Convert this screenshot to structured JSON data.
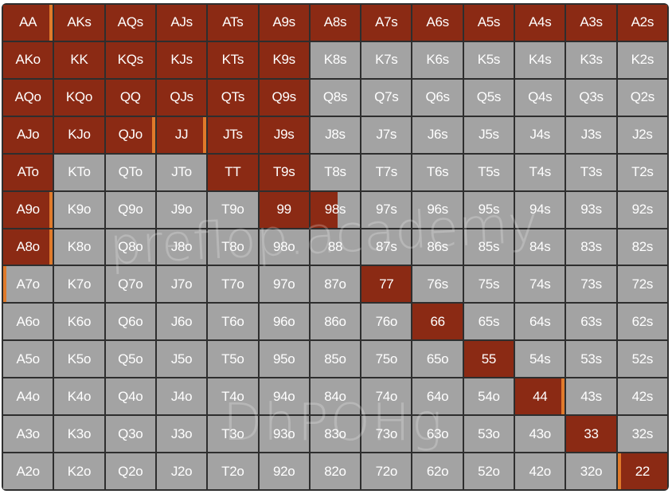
{
  "colors": {
    "raise": "#8b2a14",
    "fold": "#a3a3a3",
    "marker": "#e07a2a",
    "grid_border": "#2e2e2e"
  },
  "watermark": {
    "brand": "preflop.academy",
    "code": "DhPOHg"
  },
  "grid": {
    "rows": [
      [
        {
          "h": "AA",
          "a": "raise",
          "m": "right"
        },
        {
          "h": "AKs",
          "a": "raise"
        },
        {
          "h": "AQs",
          "a": "raise"
        },
        {
          "h": "AJs",
          "a": "raise"
        },
        {
          "h": "ATs",
          "a": "raise"
        },
        {
          "h": "A9s",
          "a": "raise"
        },
        {
          "h": "A8s",
          "a": "raise"
        },
        {
          "h": "A7s",
          "a": "raise"
        },
        {
          "h": "A6s",
          "a": "raise"
        },
        {
          "h": "A5s",
          "a": "raise"
        },
        {
          "h": "A4s",
          "a": "raise"
        },
        {
          "h": "A3s",
          "a": "raise"
        },
        {
          "h": "A2s",
          "a": "raise"
        }
      ],
      [
        {
          "h": "AKo",
          "a": "raise"
        },
        {
          "h": "KK",
          "a": "raise"
        },
        {
          "h": "KQs",
          "a": "raise"
        },
        {
          "h": "KJs",
          "a": "raise"
        },
        {
          "h": "KTs",
          "a": "raise"
        },
        {
          "h": "K9s",
          "a": "raise"
        },
        {
          "h": "K8s",
          "a": "fold"
        },
        {
          "h": "K7s",
          "a": "fold"
        },
        {
          "h": "K6s",
          "a": "fold"
        },
        {
          "h": "K5s",
          "a": "fold"
        },
        {
          "h": "K4s",
          "a": "fold"
        },
        {
          "h": "K3s",
          "a": "fold"
        },
        {
          "h": "K2s",
          "a": "fold"
        }
      ],
      [
        {
          "h": "AQo",
          "a": "raise"
        },
        {
          "h": "KQo",
          "a": "raise"
        },
        {
          "h": "QQ",
          "a": "raise"
        },
        {
          "h": "QJs",
          "a": "raise"
        },
        {
          "h": "QTs",
          "a": "raise"
        },
        {
          "h": "Q9s",
          "a": "raise"
        },
        {
          "h": "Q8s",
          "a": "fold"
        },
        {
          "h": "Q7s",
          "a": "fold"
        },
        {
          "h": "Q6s",
          "a": "fold"
        },
        {
          "h": "Q5s",
          "a": "fold"
        },
        {
          "h": "Q4s",
          "a": "fold"
        },
        {
          "h": "Q3s",
          "a": "fold"
        },
        {
          "h": "Q2s",
          "a": "fold"
        }
      ],
      [
        {
          "h": "AJo",
          "a": "raise"
        },
        {
          "h": "KJo",
          "a": "raise"
        },
        {
          "h": "QJo",
          "a": "raise",
          "m": "right"
        },
        {
          "h": "JJ",
          "a": "raise",
          "m": "right"
        },
        {
          "h": "JTs",
          "a": "raise"
        },
        {
          "h": "J9s",
          "a": "raise"
        },
        {
          "h": "J8s",
          "a": "fold"
        },
        {
          "h": "J7s",
          "a": "fold"
        },
        {
          "h": "J6s",
          "a": "fold"
        },
        {
          "h": "J5s",
          "a": "fold"
        },
        {
          "h": "J4s",
          "a": "fold"
        },
        {
          "h": "J3s",
          "a": "fold"
        },
        {
          "h": "J2s",
          "a": "fold"
        }
      ],
      [
        {
          "h": "ATo",
          "a": "raise"
        },
        {
          "h": "KTo",
          "a": "fold"
        },
        {
          "h": "QTo",
          "a": "fold"
        },
        {
          "h": "JTo",
          "a": "fold"
        },
        {
          "h": "TT",
          "a": "raise"
        },
        {
          "h": "T9s",
          "a": "raise"
        },
        {
          "h": "T8s",
          "a": "fold"
        },
        {
          "h": "T7s",
          "a": "fold"
        },
        {
          "h": "T6s",
          "a": "fold"
        },
        {
          "h": "T5s",
          "a": "fold"
        },
        {
          "h": "T4s",
          "a": "fold"
        },
        {
          "h": "T3s",
          "a": "fold"
        },
        {
          "h": "T2s",
          "a": "fold"
        }
      ],
      [
        {
          "h": "A9o",
          "a": "raise",
          "m": "right"
        },
        {
          "h": "K9o",
          "a": "fold"
        },
        {
          "h": "Q9o",
          "a": "fold"
        },
        {
          "h": "J9o",
          "a": "fold"
        },
        {
          "h": "T9o",
          "a": "fold"
        },
        {
          "h": "99",
          "a": "raise"
        },
        {
          "h": "98s",
          "a": "mix",
          "p": 0.55
        },
        {
          "h": "97s",
          "a": "fold"
        },
        {
          "h": "96s",
          "a": "fold"
        },
        {
          "h": "95s",
          "a": "fold"
        },
        {
          "h": "94s",
          "a": "fold"
        },
        {
          "h": "93s",
          "a": "fold"
        },
        {
          "h": "92s",
          "a": "fold"
        }
      ],
      [
        {
          "h": "A8o",
          "a": "raise",
          "m": "right"
        },
        {
          "h": "K8o",
          "a": "fold"
        },
        {
          "h": "Q8o",
          "a": "fold"
        },
        {
          "h": "J8o",
          "a": "fold"
        },
        {
          "h": "T8o",
          "a": "fold"
        },
        {
          "h": "98o",
          "a": "fold"
        },
        {
          "h": "88",
          "a": "fold"
        },
        {
          "h": "87s",
          "a": "fold"
        },
        {
          "h": "86s",
          "a": "fold"
        },
        {
          "h": "85s",
          "a": "fold"
        },
        {
          "h": "84s",
          "a": "fold"
        },
        {
          "h": "83s",
          "a": "fold"
        },
        {
          "h": "82s",
          "a": "fold"
        }
      ],
      [
        {
          "h": "A7o",
          "a": "fold",
          "m": "left"
        },
        {
          "h": "K7o",
          "a": "fold"
        },
        {
          "h": "Q7o",
          "a": "fold"
        },
        {
          "h": "J7o",
          "a": "fold"
        },
        {
          "h": "T7o",
          "a": "fold"
        },
        {
          "h": "97o",
          "a": "fold"
        },
        {
          "h": "87o",
          "a": "fold"
        },
        {
          "h": "77",
          "a": "raise"
        },
        {
          "h": "76s",
          "a": "fold"
        },
        {
          "h": "75s",
          "a": "fold"
        },
        {
          "h": "74s",
          "a": "fold"
        },
        {
          "h": "73s",
          "a": "fold"
        },
        {
          "h": "72s",
          "a": "fold"
        }
      ],
      [
        {
          "h": "A6o",
          "a": "fold"
        },
        {
          "h": "K6o",
          "a": "fold"
        },
        {
          "h": "Q6o",
          "a": "fold"
        },
        {
          "h": "J6o",
          "a": "fold"
        },
        {
          "h": "T6o",
          "a": "fold"
        },
        {
          "h": "96o",
          "a": "fold"
        },
        {
          "h": "86o",
          "a": "fold"
        },
        {
          "h": "76o",
          "a": "fold"
        },
        {
          "h": "66",
          "a": "raise"
        },
        {
          "h": "65s",
          "a": "fold"
        },
        {
          "h": "64s",
          "a": "fold"
        },
        {
          "h": "63s",
          "a": "fold"
        },
        {
          "h": "62s",
          "a": "fold"
        }
      ],
      [
        {
          "h": "A5o",
          "a": "fold"
        },
        {
          "h": "K5o",
          "a": "fold"
        },
        {
          "h": "Q5o",
          "a": "fold"
        },
        {
          "h": "J5o",
          "a": "fold"
        },
        {
          "h": "T5o",
          "a": "fold"
        },
        {
          "h": "95o",
          "a": "fold"
        },
        {
          "h": "85o",
          "a": "fold"
        },
        {
          "h": "75o",
          "a": "fold"
        },
        {
          "h": "65o",
          "a": "fold"
        },
        {
          "h": "55",
          "a": "raise"
        },
        {
          "h": "54s",
          "a": "fold"
        },
        {
          "h": "53s",
          "a": "fold"
        },
        {
          "h": "52s",
          "a": "fold"
        }
      ],
      [
        {
          "h": "A4o",
          "a": "fold"
        },
        {
          "h": "K4o",
          "a": "fold"
        },
        {
          "h": "Q4o",
          "a": "fold"
        },
        {
          "h": "J4o",
          "a": "fold"
        },
        {
          "h": "T4o",
          "a": "fold"
        },
        {
          "h": "94o",
          "a": "fold"
        },
        {
          "h": "84o",
          "a": "fold"
        },
        {
          "h": "74o",
          "a": "fold"
        },
        {
          "h": "64o",
          "a": "fold"
        },
        {
          "h": "54o",
          "a": "fold"
        },
        {
          "h": "44",
          "a": "raise",
          "m": "right"
        },
        {
          "h": "43s",
          "a": "fold"
        },
        {
          "h": "42s",
          "a": "fold"
        }
      ],
      [
        {
          "h": "A3o",
          "a": "fold"
        },
        {
          "h": "K3o",
          "a": "fold"
        },
        {
          "h": "Q3o",
          "a": "fold"
        },
        {
          "h": "J3o",
          "a": "fold"
        },
        {
          "h": "T3o",
          "a": "fold"
        },
        {
          "h": "93o",
          "a": "fold"
        },
        {
          "h": "83o",
          "a": "fold"
        },
        {
          "h": "73o",
          "a": "fold"
        },
        {
          "h": "63o",
          "a": "fold"
        },
        {
          "h": "53o",
          "a": "fold"
        },
        {
          "h": "43o",
          "a": "fold"
        },
        {
          "h": "33",
          "a": "raise"
        },
        {
          "h": "32s",
          "a": "fold"
        }
      ],
      [
        {
          "h": "A2o",
          "a": "fold"
        },
        {
          "h": "K2o",
          "a": "fold"
        },
        {
          "h": "Q2o",
          "a": "fold"
        },
        {
          "h": "J2o",
          "a": "fold"
        },
        {
          "h": "T2o",
          "a": "fold"
        },
        {
          "h": "92o",
          "a": "fold"
        },
        {
          "h": "82o",
          "a": "fold"
        },
        {
          "h": "72o",
          "a": "fold"
        },
        {
          "h": "62o",
          "a": "fold"
        },
        {
          "h": "52o",
          "a": "fold"
        },
        {
          "h": "42o",
          "a": "fold"
        },
        {
          "h": "32o",
          "a": "fold"
        },
        {
          "h": "22",
          "a": "raise",
          "m": "left"
        }
      ]
    ]
  }
}
